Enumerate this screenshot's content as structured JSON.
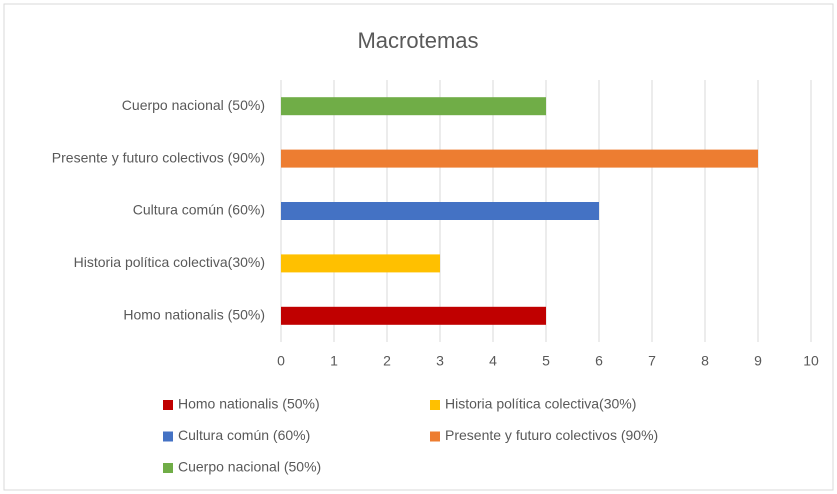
{
  "chart_data": {
    "type": "bar",
    "orientation": "horizontal",
    "title": "Macrotemas",
    "categories": [
      "Homo nationalis (50%)",
      "Historia política colectiva(30%)",
      "Cultura común (60%)",
      "Presente y futuro colectivos (90%)",
      "Cuerpo nacional (50%)"
    ],
    "values": [
      5,
      3,
      6,
      9,
      5
    ],
    "colors": [
      "#c00000",
      "#ffc000",
      "#4472c4",
      "#ed7d31",
      "#70ad47"
    ],
    "xlim": [
      0,
      10
    ],
    "xticks": [
      0,
      1,
      2,
      3,
      4,
      5,
      6,
      7,
      8,
      9,
      10
    ],
    "grid": true,
    "legend": "bottom"
  }
}
